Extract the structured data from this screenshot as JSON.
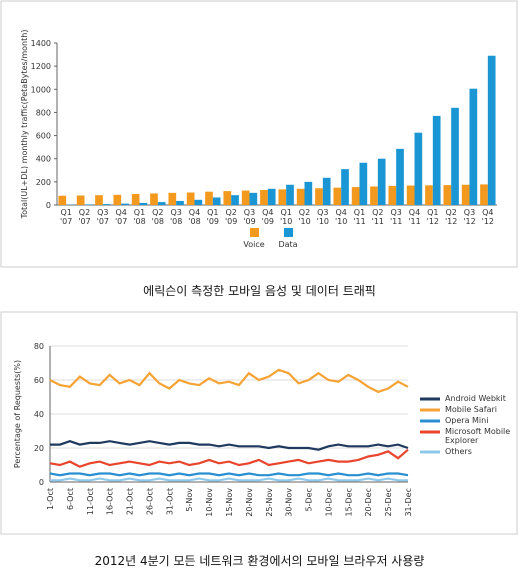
{
  "chart_data": [
    {
      "type": "bar",
      "ylabel": "Total(UL+DL) monthly traffic(PetaBytes/month)",
      "categories": [
        "Q1 '07",
        "Q2 '07",
        "Q3 '07",
        "Q4 '07",
        "Q1 '08",
        "Q2 '08",
        "Q3 '08",
        "Q4 '08",
        "Q1 '09",
        "Q2 '09",
        "Q3 '09",
        "Q4 '09",
        "Q1 '10",
        "Q2 '10",
        "Q3 '10",
        "Q4 '10",
        "Q1 '11",
        "Q2 '11",
        "Q3 '11",
        "Q4 '11",
        "Q1 '12",
        "Q2 '12",
        "Q3 '12",
        "Q4 '12"
      ],
      "series": [
        {
          "name": "Voice",
          "color": "#f39a1e",
          "values": [
            80,
            82,
            85,
            88,
            95,
            100,
            105,
            108,
            115,
            120,
            125,
            130,
            135,
            140,
            145,
            150,
            155,
            160,
            165,
            168,
            170,
            172,
            175,
            178
          ]
        },
        {
          "name": "Data",
          "color": "#1a96d4",
          "values": [
            3,
            5,
            8,
            12,
            18,
            25,
            35,
            45,
            65,
            85,
            105,
            140,
            175,
            200,
            235,
            310,
            365,
            400,
            485,
            625,
            770,
            840,
            1005,
            1290
          ]
        }
      ],
      "ylim": [
        0,
        1400
      ],
      "yticks": [
        0,
        200,
        400,
        600,
        800,
        1000,
        1200,
        1400
      ],
      "caption": "에릭슨이 측정한 모바일 음성 및 데이터 트래픽"
    },
    {
      "type": "line",
      "ylabel": "Percentage of Requests(%)",
      "categories": [
        "1-Oct",
        null,
        "6-Oct",
        null,
        "11-Oct",
        null,
        "16-Oct",
        null,
        "21-Oct",
        null,
        "26-Oct",
        null,
        "31-Oct",
        null,
        "5-Nov",
        null,
        "10-Nov",
        null,
        "15-Nov",
        null,
        "20-Nov",
        null,
        "25-Nov",
        null,
        "30-Nov",
        null,
        "5-Dec",
        null,
        "10-Dec",
        null,
        "15-Dec",
        null,
        "20-Dec",
        null,
        "25-Dec",
        null,
        "31-Dec"
      ],
      "series": [
        {
          "name": "Android Webkit",
          "color": "#1f3a5f",
          "values": [
            22,
            22,
            24,
            22,
            23,
            23,
            24,
            23,
            22,
            23,
            24,
            23,
            22,
            23,
            23,
            22,
            22,
            21,
            22,
            21,
            21,
            21,
            20,
            21,
            20,
            20,
            20,
            19,
            21,
            22,
            21,
            21,
            21,
            22,
            21,
            22,
            20
          ]
        },
        {
          "name": "Mobile Safari",
          "color": "#f7a234",
          "values": [
            60,
            57,
            56,
            62,
            58,
            57,
            63,
            58,
            60,
            57,
            64,
            58,
            55,
            60,
            58,
            57,
            61,
            58,
            59,
            57,
            64,
            60,
            62,
            66,
            64,
            58,
            60,
            64,
            60,
            59,
            63,
            60,
            56,
            53,
            55,
            59,
            56
          ]
        },
        {
          "name": "Opera Mini",
          "color": "#2a8fd0",
          "values": [
            5,
            4,
            5,
            5,
            4,
            5,
            5,
            4,
            5,
            4,
            5,
            5,
            4,
            5,
            4,
            5,
            5,
            4,
            5,
            4,
            5,
            4,
            4,
            5,
            4,
            4,
            5,
            5,
            4,
            5,
            4,
            4,
            5,
            4,
            5,
            5,
            4
          ]
        },
        {
          "name": "Microsoft Mobile Explorer",
          "color": "#e8452c",
          "values": [
            11,
            10,
            12,
            9,
            11,
            12,
            10,
            11,
            12,
            11,
            10,
            12,
            11,
            12,
            10,
            11,
            13,
            11,
            12,
            10,
            11,
            13,
            10,
            11,
            12,
            13,
            11,
            12,
            13,
            12,
            12,
            13,
            15,
            16,
            18,
            14,
            19
          ]
        },
        {
          "name": "Others",
          "color": "#8ec9ec",
          "values": [
            1,
            1,
            2,
            1,
            1,
            2,
            1,
            1,
            2,
            1,
            1,
            2,
            1,
            1,
            1,
            2,
            1,
            1,
            2,
            1,
            1,
            1,
            2,
            1,
            1,
            2,
            1,
            1,
            2,
            1,
            1,
            1,
            2,
            1,
            2,
            1,
            1
          ]
        }
      ],
      "ylim": [
        0,
        80
      ],
      "yticks": [
        0,
        20,
        40,
        60,
        80
      ],
      "caption": "2012년 4분기 모든 네트워크 환경에서의 모바일 브라우저 사용량"
    }
  ]
}
